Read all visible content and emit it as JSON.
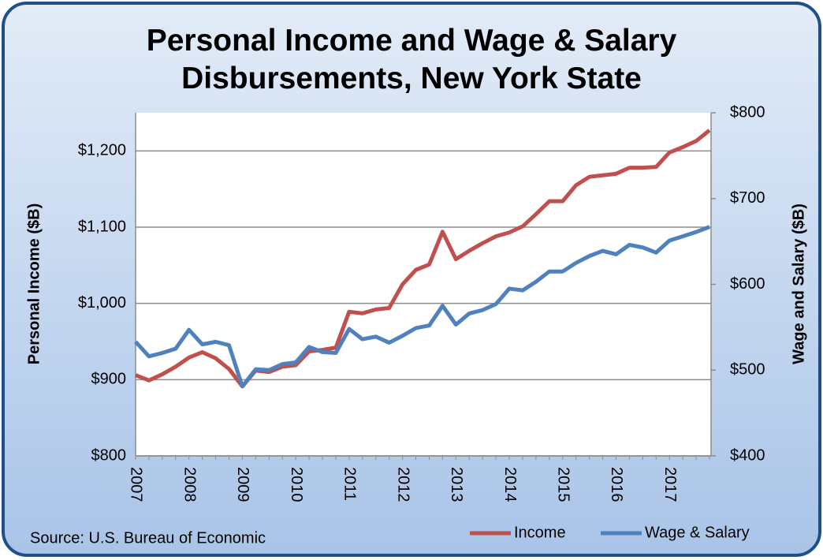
{
  "chart_data": {
    "type": "line",
    "title": "Personal Income and Wage & Salary Disbursements, New York State",
    "y_label": "Personal Income ($B)",
    "y2_label": "Wage and Salary ($B)",
    "source": "Source: U.S. Bureau of Economic",
    "categories": [
      "2007",
      null,
      null,
      null,
      "2008",
      null,
      null,
      null,
      "2009",
      null,
      null,
      null,
      "2010",
      null,
      null,
      null,
      "2011",
      null,
      null,
      null,
      "2012",
      null,
      null,
      null,
      "2013",
      null,
      null,
      null,
      "2014",
      null,
      null,
      null,
      "2015",
      null,
      null,
      null,
      "2016",
      null,
      null,
      null,
      "2017",
      null,
      null,
      null
    ],
    "series": [
      {
        "name": "Income",
        "color": "#c0504d",
        "values": [
          906,
          899,
          907,
          917,
          929,
          936,
          928,
          914,
          891,
          912,
          910,
          917,
          919,
          937,
          939,
          942,
          989,
          987,
          992,
          994,
          1025,
          1044,
          1051,
          1094,
          1058,
          1069,
          1079,
          1088,
          1093,
          1101,
          1117,
          1134,
          1134,
          1155,
          1166,
          1168,
          1170,
          1178,
          1178,
          1179,
          1198,
          1205,
          1213,
          1227
        ]
      },
      {
        "name": "Wage & Salary",
        "color": "#4f81bd",
        "axis": "y2",
        "values": [
          533,
          516,
          520,
          525,
          547,
          530,
          533,
          529,
          481,
          501,
          500,
          507,
          509,
          527,
          521,
          520,
          548,
          536,
          539,
          532,
          540,
          549,
          552,
          575,
          553,
          566,
          570,
          577,
          595,
          593,
          603,
          615,
          615,
          625,
          633,
          639,
          635,
          646,
          643,
          637,
          651,
          656,
          661,
          667
        ]
      }
    ],
    "ylim": [
      800,
      1250
    ],
    "yticks": [
      {
        "value": 800,
        "label": "$800"
      },
      {
        "value": 900,
        "label": "$900"
      },
      {
        "value": 1000,
        "label": "$1,000"
      },
      {
        "value": 1100,
        "label": "$1,100"
      },
      {
        "value": 1200,
        "label": "$1,200"
      }
    ],
    "y2lim": [
      400,
      800
    ],
    "y2ticks": [
      {
        "value": 400,
        "label": "$400"
      },
      {
        "value": 500,
        "label": "$500"
      },
      {
        "value": 600,
        "label": "$600"
      },
      {
        "value": 700,
        "label": "$700"
      },
      {
        "value": 800,
        "label": "$800"
      }
    ],
    "grid": true,
    "legend": "bottom-right"
  }
}
